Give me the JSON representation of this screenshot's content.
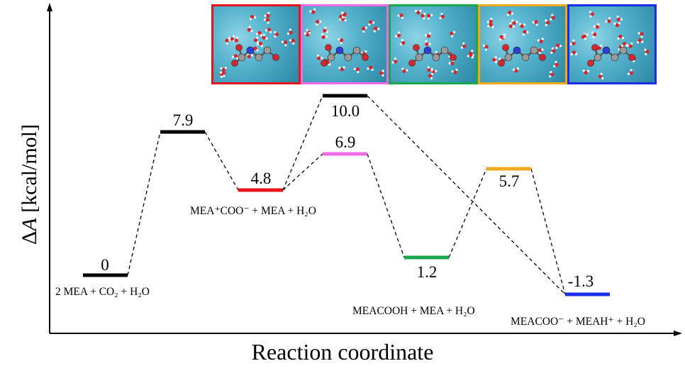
{
  "axes": {
    "ylabel_prefix": "Δ",
    "ylabel_var": "A",
    "ylabel_unit": " [kcal/mol]",
    "xlabel": "Reaction coordinate"
  },
  "levels": [
    {
      "id": "reactants",
      "value": "0",
      "color": "#000000"
    },
    {
      "id": "ts1",
      "value": "7.9",
      "color": "#000000"
    },
    {
      "id": "zwitterion",
      "value": "4.8",
      "color": "#e8141b"
    },
    {
      "id": "ts2",
      "value": "10.0",
      "color": "#000000"
    },
    {
      "id": "ts3",
      "value": "6.9",
      "color": "#ee6ae8"
    },
    {
      "id": "carbamic",
      "value": "1.2",
      "color": "#1aa64a"
    },
    {
      "id": "ts4",
      "value": "5.7",
      "color": "#f0a81c"
    },
    {
      "id": "carbamate",
      "value": "-1.3",
      "color": "#1a2ee6"
    }
  ],
  "species": {
    "reactants": "2 MEA + CO₂ + H₂O",
    "zwitterion": "MEA⁺COO⁻ + MEA + H₂O",
    "carbamic": "MEACOOH + MEA + H₂O",
    "carbamate": "MEACOO⁻ + MEAH⁺ + H₂O"
  },
  "snapshots": [
    {
      "border": "#e8141b"
    },
    {
      "border": "#ee6ae8"
    },
    {
      "border": "#1aa64a"
    },
    {
      "border": "#f0a81c"
    },
    {
      "border": "#1a2ee6"
    }
  ]
}
